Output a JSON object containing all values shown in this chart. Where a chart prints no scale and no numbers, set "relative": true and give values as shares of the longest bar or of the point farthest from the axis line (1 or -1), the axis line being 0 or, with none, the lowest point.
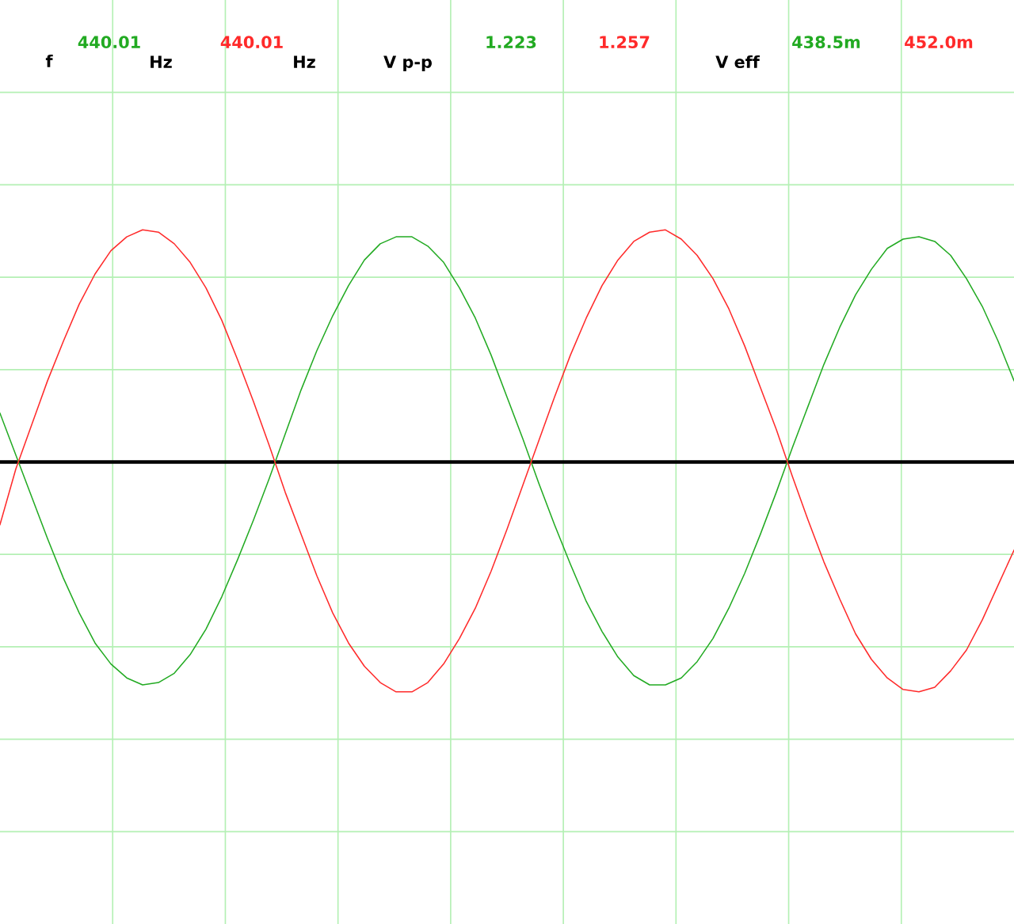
{
  "chart_data": {
    "type": "line",
    "relative": true,
    "grid": true,
    "categories": [
      null,
      null,
      null,
      null,
      null,
      null,
      null,
      null,
      null,
      null,
      null,
      null,
      null,
      null,
      null,
      null,
      null,
      null,
      null,
      null,
      null,
      null,
      null,
      null,
      null,
      null,
      null,
      null,
      null,
      null,
      null,
      null,
      null,
      null,
      null,
      null,
      null,
      null,
      null,
      null,
      null,
      null,
      null,
      null,
      null,
      null,
      null,
      null,
      null,
      null,
      null,
      null,
      null,
      null,
      null,
      null,
      null,
      null,
      null,
      null,
      null,
      null,
      null,
      null,
      null
    ],
    "series": [
      {
        "color": "#22aa22",
        "values": [
          0.21,
          0.03,
          -0.15,
          -0.33,
          -0.5,
          -0.65,
          -0.78,
          -0.87,
          -0.93,
          -0.96,
          -0.95,
          -0.91,
          -0.83,
          -0.72,
          -0.58,
          -0.42,
          -0.25,
          -0.07,
          0.12,
          0.31,
          0.48,
          0.63,
          0.76,
          0.87,
          0.94,
          0.97,
          0.97,
          0.93,
          0.86,
          0.75,
          0.62,
          0.46,
          0.28,
          0.1,
          -0.09,
          -0.27,
          -0.44,
          -0.6,
          -0.73,
          -0.84,
          -0.92,
          -0.96,
          -0.96,
          -0.93,
          -0.86,
          -0.76,
          -0.63,
          -0.48,
          -0.31,
          -0.13,
          0.06,
          0.24,
          0.42,
          0.58,
          0.72,
          0.83,
          0.92,
          0.96,
          0.97,
          0.95,
          0.89,
          0.79,
          0.67,
          0.52,
          0.35
        ]
      },
      {
        "color": "#ff2a2a",
        "values": [
          -0.27,
          -0.03,
          0.16,
          0.35,
          0.52,
          0.68,
          0.81,
          0.91,
          0.97,
          1.0,
          0.99,
          0.94,
          0.86,
          0.75,
          0.61,
          0.44,
          0.26,
          0.07,
          -0.13,
          -0.31,
          -0.49,
          -0.65,
          -0.78,
          -0.88,
          -0.95,
          -0.99,
          -0.99,
          -0.95,
          -0.87,
          -0.76,
          -0.63,
          -0.47,
          -0.29,
          -0.1,
          0.09,
          0.28,
          0.46,
          0.62,
          0.76,
          0.87,
          0.95,
          0.99,
          1.0,
          0.96,
          0.89,
          0.79,
          0.66,
          0.5,
          0.32,
          0.14,
          -0.06,
          -0.25,
          -0.43,
          -0.59,
          -0.74,
          -0.85,
          -0.93,
          -0.98,
          -0.99,
          -0.97,
          -0.9,
          -0.81,
          -0.68,
          -0.53,
          -0.38
        ]
      }
    ],
    "annotations": [
      "f",
      "440.01",
      "Hz",
      "440.01",
      "Hz",
      "V p-p",
      "1.223",
      "1.257",
      "V eff",
      "438.5m",
      "452.0m"
    ]
  }
}
